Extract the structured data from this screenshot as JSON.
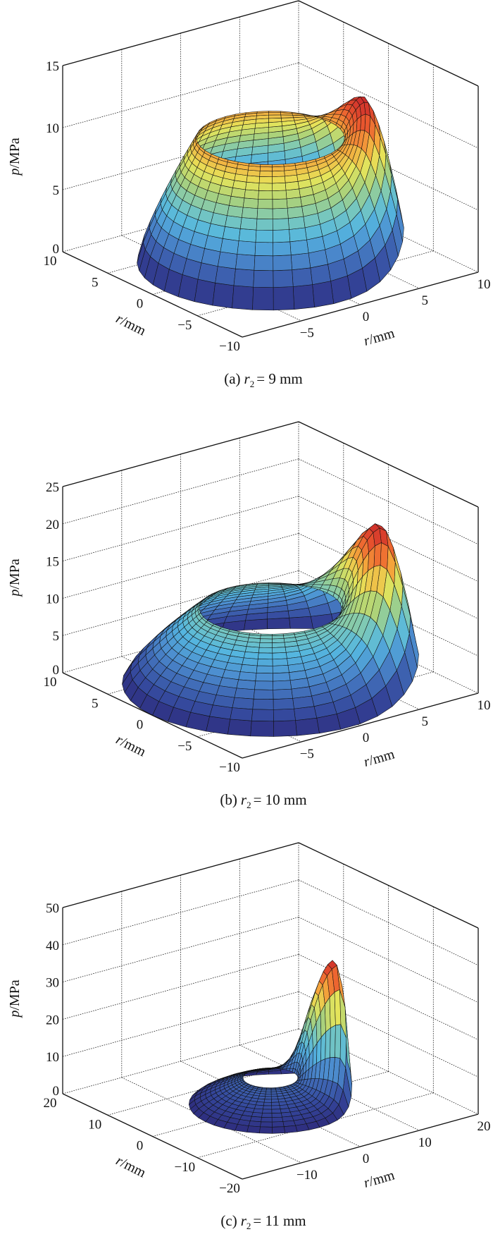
{
  "colormap": [
    "#2e2c7c",
    "#34459a",
    "#3f67b4",
    "#4d8fd0",
    "#55b6df",
    "#79c8bc",
    "#a9d17c",
    "#e6e55a",
    "#f4a73c",
    "#ec5a2e",
    "#c8262a"
  ],
  "chart_data": [
    {
      "type": "surface",
      "caption": {
        "label": "(a)",
        "var": "r",
        "sub": "2",
        "value": "= 9 mm"
      },
      "xlabel": {
        "var": "r",
        "unit": "/mm"
      },
      "ylabel": {
        "var": "r",
        "unit": "/mm"
      },
      "zlabel": {
        "var": "p",
        "unit": "/MPa"
      },
      "xlim": [
        -10,
        10
      ],
      "ylim": [
        -10,
        10
      ],
      "zlim": [
        0,
        15
      ],
      "left_axis_ticks": [
        10,
        5,
        0,
        -5,
        -10
      ],
      "left_axis_tick_labels": [
        "10",
        "5",
        "0",
        "−5",
        "−10"
      ],
      "right_axis_ticks": [
        -5,
        0,
        5,
        10
      ],
      "right_axis_tick_labels": [
        "−5",
        "0",
        "5",
        "10"
      ],
      "zticks": [
        0,
        5,
        10,
        15
      ],
      "ztick_labels": [
        "0",
        "5",
        "10",
        "15"
      ],
      "grid": true,
      "inner_radius": 5,
      "outer_radius": 9,
      "rim_pressure": 10,
      "peak_pressure": 12.5,
      "outer_edge_pressure_at_peak": 3,
      "peak_radius": 6.6,
      "peak_angle_deg": 112
    },
    {
      "type": "surface",
      "caption": {
        "label": "(b)",
        "var": "r",
        "sub": "2",
        "value": "= 10 mm"
      },
      "xlabel": {
        "var": "r",
        "unit": "/mm"
      },
      "ylabel": {
        "var": "r",
        "unit": "/mm"
      },
      "zlabel": {
        "var": "p",
        "unit": "/MPa"
      },
      "xlim": [
        -10,
        10
      ],
      "ylim": [
        -10,
        10
      ],
      "zlim": [
        0,
        25
      ],
      "left_axis_ticks": [
        10,
        5,
        0,
        -5,
        -10
      ],
      "left_axis_tick_labels": [
        "10",
        "5",
        "0",
        "−5",
        "−10"
      ],
      "right_axis_ticks": [
        -5,
        0,
        5,
        10
      ],
      "right_axis_tick_labels": [
        "−5",
        "0",
        "5",
        "10"
      ],
      "zticks": [
        0,
        5,
        10,
        15,
        20,
        25
      ],
      "ztick_labels": [
        "0",
        "5",
        "10",
        "15",
        "20",
        "25"
      ],
      "grid": true,
      "inner_radius": 4.8,
      "outer_radius": 10,
      "rim_pressure": 10,
      "peak_pressure": 20,
      "outer_edge_pressure_at_peak": 4,
      "peak_radius": 7.7,
      "peak_angle_deg": 114
    },
    {
      "type": "surface",
      "caption": {
        "label": "(c)",
        "var": "r",
        "sub": "2",
        "value": "= 11 mm"
      },
      "xlabel": {
        "var": "r",
        "unit": "/mm"
      },
      "ylabel": {
        "var": "r",
        "unit": "/mm"
      },
      "zlabel": {
        "var": "p",
        "unit": "/MPa"
      },
      "xlim": [
        -20,
        20
      ],
      "ylim": [
        -20,
        20
      ],
      "zlim": [
        0,
        50
      ],
      "left_axis_ticks": [
        20,
        10,
        0,
        -10,
        -20
      ],
      "left_axis_tick_labels": [
        "20",
        "10",
        "0",
        "−10",
        "−20"
      ],
      "right_axis_ticks": [
        -10,
        0,
        10,
        20
      ],
      "right_axis_tick_labels": [
        "−10",
        "0",
        "10",
        "20"
      ],
      "zticks": [
        0,
        10,
        20,
        30,
        40,
        50
      ],
      "ztick_labels": [
        "0",
        "10",
        "20",
        "30",
        "40",
        "50"
      ],
      "grid": true,
      "inner_radius": 3.7,
      "outer_radius": 11,
      "rim_pressure": 7,
      "peak_pressure": 36,
      "outer_edge_pressure_at_peak": 9,
      "peak_radius": 9.8,
      "peak_angle_deg": 103
    }
  ]
}
